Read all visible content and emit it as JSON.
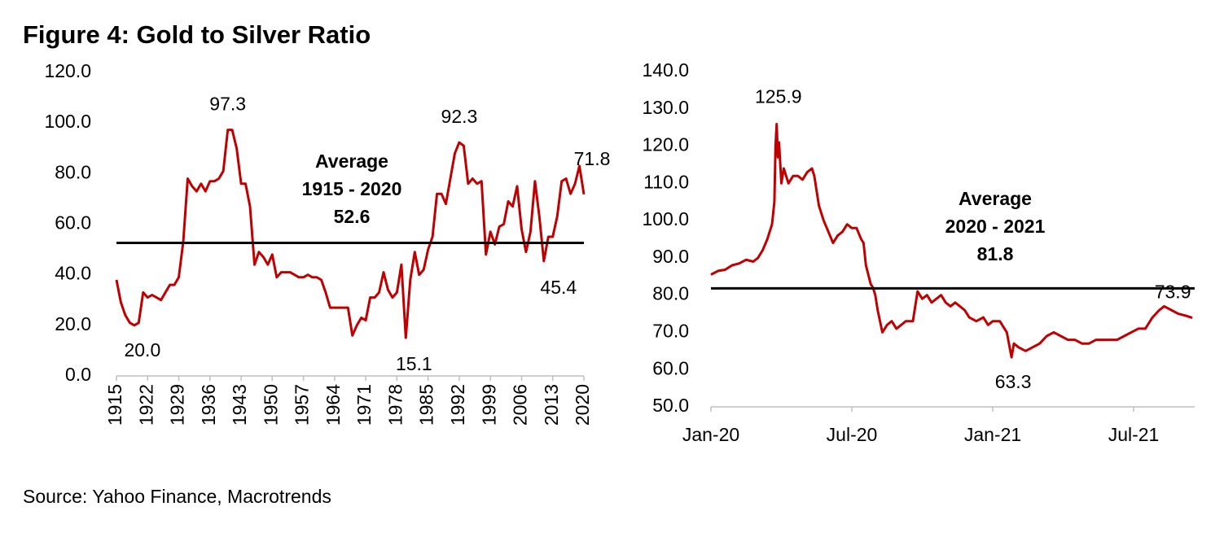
{
  "title": "Figure 4: Gold to Silver Ratio",
  "source": "Source: Yahoo Finance, Macrotrends",
  "chart_data": [
    {
      "type": "line",
      "x": [
        1915,
        1916,
        1917,
        1918,
        1919,
        1920,
        1921,
        1922,
        1923,
        1924,
        1925,
        1926,
        1927,
        1928,
        1929,
        1930,
        1931,
        1932,
        1933,
        1934,
        1935,
        1936,
        1937,
        1938,
        1939,
        1940,
        1941,
        1942,
        1943,
        1944,
        1945,
        1946,
        1947,
        1948,
        1949,
        1950,
        1951,
        1952,
        1953,
        1954,
        1955,
        1956,
        1957,
        1958,
        1959,
        1960,
        1961,
        1962,
        1963,
        1964,
        1965,
        1966,
        1967,
        1968,
        1969,
        1970,
        1971,
        1972,
        1973,
        1974,
        1975,
        1976,
        1977,
        1978,
        1979,
        1980,
        1981,
        1982,
        1983,
        1984,
        1985,
        1986,
        1987,
        1988,
        1989,
        1990,
        1991,
        1992,
        1993,
        1994,
        1995,
        1996,
        1997,
        1998,
        1999,
        2000,
        2001,
        2002,
        2003,
        2004,
        2005,
        2006,
        2007,
        2008,
        2009,
        2010,
        2011,
        2012,
        2013,
        2014,
        2015,
        2016,
        2017,
        2018,
        2019,
        2020
      ],
      "series": [
        {
          "color": "#c00000",
          "values": [
            38,
            29,
            24,
            21,
            20,
            21,
            33,
            31,
            32,
            31,
            30,
            33,
            36,
            36,
            39,
            53,
            78,
            75,
            73,
            76,
            73,
            77,
            77,
            78,
            81,
            97.3,
            97.3,
            90,
            76,
            76,
            67,
            44,
            49,
            47,
            44,
            48,
            39,
            41,
            41,
            41,
            40,
            39,
            39,
            40,
            39,
            39,
            38,
            33,
            27,
            27,
            27,
            27,
            27,
            16,
            20,
            23,
            22,
            31,
            31,
            33,
            41,
            34,
            31,
            33,
            44,
            15.1,
            38,
            49,
            40,
            42,
            50,
            55,
            72,
            72,
            68,
            78,
            88,
            92.3,
            91,
            76,
            78,
            76,
            77,
            48,
            57,
            52,
            59,
            60,
            69,
            67,
            75,
            58,
            49,
            57,
            77,
            63,
            45.4,
            55,
            55,
            63,
            77,
            78,
            72,
            76,
            83,
            71.8
          ]
        }
      ],
      "xlim": [
        1915,
        2020
      ],
      "xticks": [
        1915,
        1922,
        1929,
        1936,
        1943,
        1950,
        1957,
        1964,
        1971,
        1978,
        1985,
        1992,
        1999,
        2006,
        2013,
        2020
      ],
      "ylim": [
        0,
        120
      ],
      "yticks": [
        {
          "value": 0,
          "label": "0.0"
        },
        {
          "value": 20,
          "label": "20.0"
        },
        {
          "value": 40,
          "label": "40.0"
        },
        {
          "value": 60,
          "label": "60.0"
        },
        {
          "value": 80,
          "label": "80.0"
        },
        {
          "value": 100,
          "label": "100.0"
        },
        {
          "value": 120,
          "label": "120.0"
        }
      ],
      "average_text": [
        "Average",
        "1915 - 2020"
      ],
      "average": {
        "value": 52.6,
        "label": "52.6"
      },
      "annotations": [
        {
          "x": 1940,
          "value": 97.3,
          "label": "97.3"
        },
        {
          "x": 1919,
          "value": 20,
          "label": "20.0"
        },
        {
          "x": 1992,
          "value": 92.3,
          "label": "92.3"
        },
        {
          "x": 1980,
          "value": 15.1,
          "label": "15.1"
        },
        {
          "x": 2011,
          "value": 45.4,
          "label": "45.4"
        },
        {
          "x": 2020,
          "value": 71.8,
          "label": "71.8"
        }
      ]
    },
    {
      "type": "line",
      "x": [
        0,
        0.3,
        0.6,
        0.9,
        1.2,
        1.5,
        1.8,
        2.0,
        2.2,
        2.4,
        2.5,
        2.6,
        2.7,
        2.75,
        2.8,
        2.85,
        2.9,
        3.0,
        3.1,
        3.2,
        3.3,
        3.5,
        3.7,
        3.9,
        4.1,
        4.3,
        4.4,
        4.6,
        4.8,
        5.0,
        5.2,
        5.4,
        5.6,
        5.8,
        6.0,
        6.2,
        6.4,
        6.5,
        6.6,
        6.8,
        6.9,
        7.0,
        7.1,
        7.3,
        7.5,
        7.7,
        7.9,
        8.1,
        8.3,
        8.6,
        8.8,
        9.0,
        9.2,
        9.4,
        9.6,
        9.8,
        10.0,
        10.2,
        10.4,
        10.6,
        10.8,
        11.0,
        11.3,
        11.6,
        11.8,
        12.0,
        12.3,
        12.6,
        12.8,
        12.9,
        13.1,
        13.4,
        13.7,
        14.0,
        14.3,
        14.6,
        14.9,
        15.2,
        15.5,
        15.8,
        16.1,
        16.4,
        16.7,
        17.0,
        17.3,
        17.6,
        17.9,
        18.2,
        18.5,
        18.8,
        19.1,
        19.3,
        19.6,
        19.9,
        20.2,
        20.5
      ],
      "series": [
        {
          "color": "#c00000",
          "values": [
            85.5,
            86.5,
            86.8,
            88,
            88.5,
            89.5,
            89,
            90,
            92,
            95,
            97,
            99,
            105,
            120,
            125.9,
            117,
            121,
            110,
            114,
            112,
            110,
            112,
            112,
            111,
            113,
            114,
            112,
            104,
            100,
            97,
            94,
            96,
            97,
            99,
            98,
            98,
            95,
            94,
            88,
            83,
            82,
            80,
            76,
            70,
            72,
            73,
            71,
            72,
            73,
            73,
            81,
            79,
            80,
            78,
            79,
            80,
            78,
            77,
            78,
            77,
            76,
            74,
            73,
            74,
            72,
            73,
            73,
            70,
            63.3,
            67,
            66,
            65,
            66,
            67,
            69,
            70,
            69,
            68,
            68,
            67,
            67,
            68,
            68,
            68,
            68,
            69,
            70,
            71,
            71,
            74,
            76,
            77,
            76,
            75,
            74.5,
            73.9
          ]
        }
      ],
      "xlim": [
        0,
        20.6
      ],
      "xticks": [
        {
          "value": 0,
          "label": "Jan-20"
        },
        {
          "value": 6,
          "label": "Jul-20"
        },
        {
          "value": 12,
          "label": "Jan-21"
        },
        {
          "value": 18,
          "label": "Jul-21"
        }
      ],
      "ylim": [
        50,
        140
      ],
      "yticks": [
        {
          "value": 50,
          "label": "50.0"
        },
        {
          "value": 60,
          "label": "60.0"
        },
        {
          "value": 70,
          "label": "70.0"
        },
        {
          "value": 80,
          "label": "80.0"
        },
        {
          "value": 90,
          "label": "90.0"
        },
        {
          "value": 100,
          "label": "100.0"
        },
        {
          "value": 110,
          "label": "110.0"
        },
        {
          "value": 120,
          "label": "120.0"
        },
        {
          "value": 130,
          "label": "130.0"
        },
        {
          "value": 140,
          "label": "140.0"
        }
      ],
      "average_text": [
        "Average",
        "2020 - 2021"
      ],
      "average": {
        "value": 81.8,
        "label": "81.8"
      },
      "annotations": [
        {
          "x": 2.8,
          "value": 125.9,
          "label": "125.9"
        },
        {
          "x": 12.8,
          "value": 63.3,
          "label": "63.3"
        },
        {
          "x": 20.5,
          "value": 73.9,
          "label": "73.9"
        }
      ]
    }
  ]
}
